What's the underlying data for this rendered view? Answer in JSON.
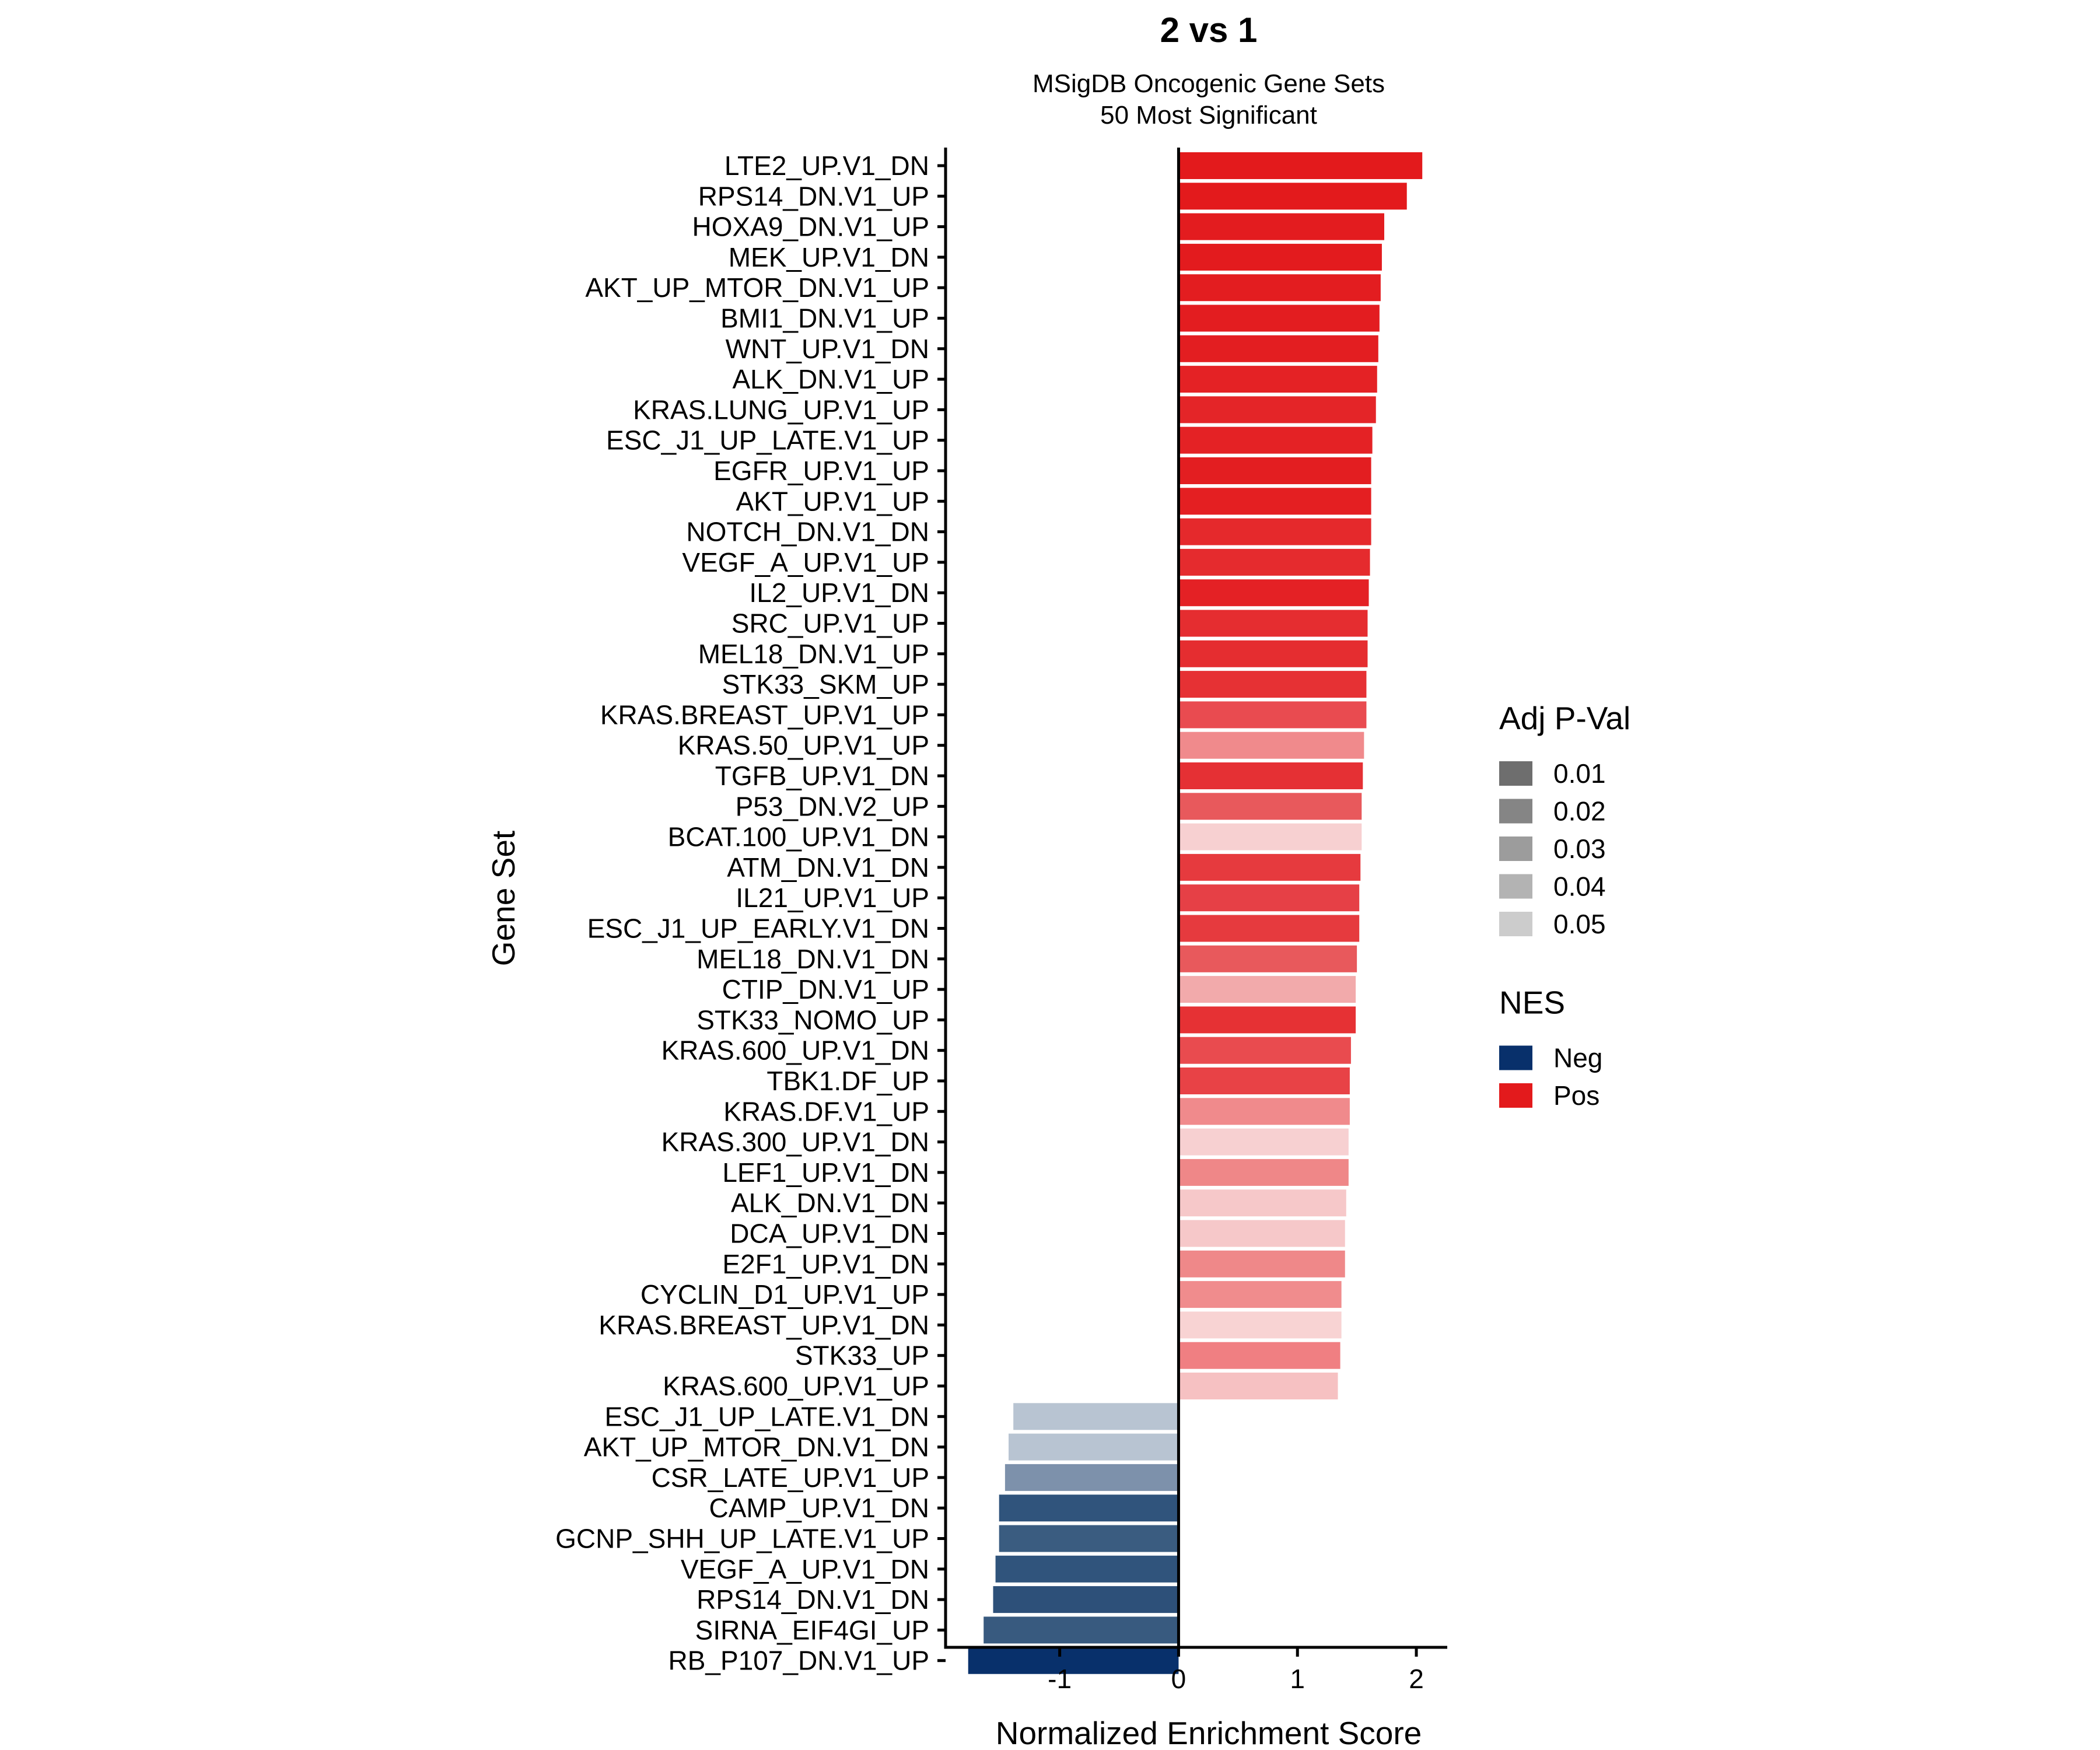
{
  "chart_data": {
    "type": "bar",
    "orientation": "horizontal",
    "title": "2 vs 1",
    "subtitle": [
      "MSigDB Oncogenic Gene Sets",
      "50 Most Significant"
    ],
    "xlabel": "Normalized Enrichment Score",
    "ylabel": "Gene Set",
    "xlim": [
      -1.96,
      2.26
    ],
    "xticks": [
      -1,
      0,
      1,
      2
    ],
    "grid": false,
    "categories": [
      "LTE2_UP.V1_DN",
      "RPS14_DN.V1_UP",
      "HOXA9_DN.V1_UP",
      "MEK_UP.V1_DN",
      "AKT_UP_MTOR_DN.V1_UP",
      "BMI1_DN.V1_UP",
      "WNT_UP.V1_DN",
      "ALK_DN.V1_UP",
      "KRAS.LUNG_UP.V1_UP",
      "ESC_J1_UP_LATE.V1_UP",
      "EGFR_UP.V1_UP",
      "AKT_UP.V1_UP",
      "NOTCH_DN.V1_DN",
      "VEGF_A_UP.V1_UP",
      "IL2_UP.V1_DN",
      "SRC_UP.V1_UP",
      "MEL18_DN.V1_UP",
      "STK33_SKM_UP",
      "KRAS.BREAST_UP.V1_UP",
      "KRAS.50_UP.V1_UP",
      "TGFB_UP.V1_DN",
      "P53_DN.V2_UP",
      "BCAT.100_UP.V1_DN",
      "ATM_DN.V1_DN",
      "IL21_UP.V1_UP",
      "ESC_J1_UP_EARLY.V1_DN",
      "MEL18_DN.V1_DN",
      "CTIP_DN.V1_UP",
      "STK33_NOMO_UP",
      "KRAS.600_UP.V1_DN",
      "TBK1.DF_UP",
      "KRAS.DF.V1_UP",
      "KRAS.300_UP.V1_DN",
      "LEF1_UP.V1_DN",
      "ALK_DN.V1_DN",
      "DCA_UP.V1_DN",
      "E2F1_UP.V1_DN",
      "CYCLIN_D1_UP.V1_UP",
      "KRAS.BREAST_UP.V1_DN",
      "STK33_UP",
      "KRAS.600_UP.V1_UP",
      "ESC_J1_UP_LATE.V1_DN",
      "AKT_UP_MTOR_DN.V1_DN",
      "CSR_LATE_UP.V1_UP",
      "CAMP_UP.V1_DN",
      "GCNP_SHH_UP_LATE.V1_UP",
      "VEGF_A_UP.V1_DN",
      "RPS14_DN.V1_DN",
      "SIRNA_EIF4GI_UP",
      "RB_P107_DN.V1_UP"
    ],
    "values": [
      2.05,
      1.92,
      1.73,
      1.71,
      1.7,
      1.69,
      1.68,
      1.67,
      1.66,
      1.63,
      1.62,
      1.62,
      1.62,
      1.61,
      1.6,
      1.59,
      1.59,
      1.58,
      1.58,
      1.56,
      1.55,
      1.54,
      1.54,
      1.53,
      1.52,
      1.52,
      1.5,
      1.49,
      1.49,
      1.45,
      1.44,
      1.44,
      1.43,
      1.43,
      1.41,
      1.4,
      1.4,
      1.37,
      1.37,
      1.36,
      1.34,
      -1.39,
      -1.43,
      -1.46,
      -1.51,
      -1.51,
      -1.54,
      -1.56,
      -1.64,
      -1.77
    ],
    "bar_colors": [
      "#e31a1c",
      "#e31a1c",
      "#e31c1f",
      "#e31b1e",
      "#e31d20",
      "#e31d20",
      "#e31e21",
      "#e42225",
      "#e42528",
      "#e42225",
      "#e31e21",
      "#e41f22",
      "#e5292c",
      "#e52b2e",
      "#e42125",
      "#e52d30",
      "#e52d30",
      "#e63134",
      "#e94b50",
      "#f08a8c",
      "#e53034",
      "#e8595c",
      "#f7d0d1",
      "#e63a3e",
      "#e64046",
      "#e63a3e",
      "#e8595c",
      "#f2aaab",
      "#e63134",
      "#e94b4f",
      "#e84246",
      "#f08a8c",
      "#f7d0d1",
      "#ef8788",
      "#f6c8c9",
      "#f6c8c9",
      "#ef8889",
      "#f08c8d",
      "#f8d3d3",
      "#f07f82",
      "#f6c1c2",
      "#b8c4d2",
      "#b8c4d2",
      "#7d91ab",
      "#30547c",
      "#3a5c80",
      "#30547c",
      "#2d5079",
      "#385a7f",
      "#08306b"
    ],
    "legend": {
      "placement": "right",
      "groups": [
        {
          "title": "Adj P-Val",
          "entries": [
            {
              "label": "0.01",
              "color": "#6e6e6e"
            },
            {
              "label": "0.02",
              "color": "#858585"
            },
            {
              "label": "0.03",
              "color": "#9c9c9c"
            },
            {
              "label": "0.04",
              "color": "#b3b3b3"
            },
            {
              "label": "0.05",
              "color": "#cccccc"
            }
          ]
        },
        {
          "title": "NES",
          "entries": [
            {
              "label": "Neg",
              "color": "#08306b"
            },
            {
              "label": "Pos",
              "color": "#e31a1c"
            }
          ]
        }
      ]
    }
  }
}
